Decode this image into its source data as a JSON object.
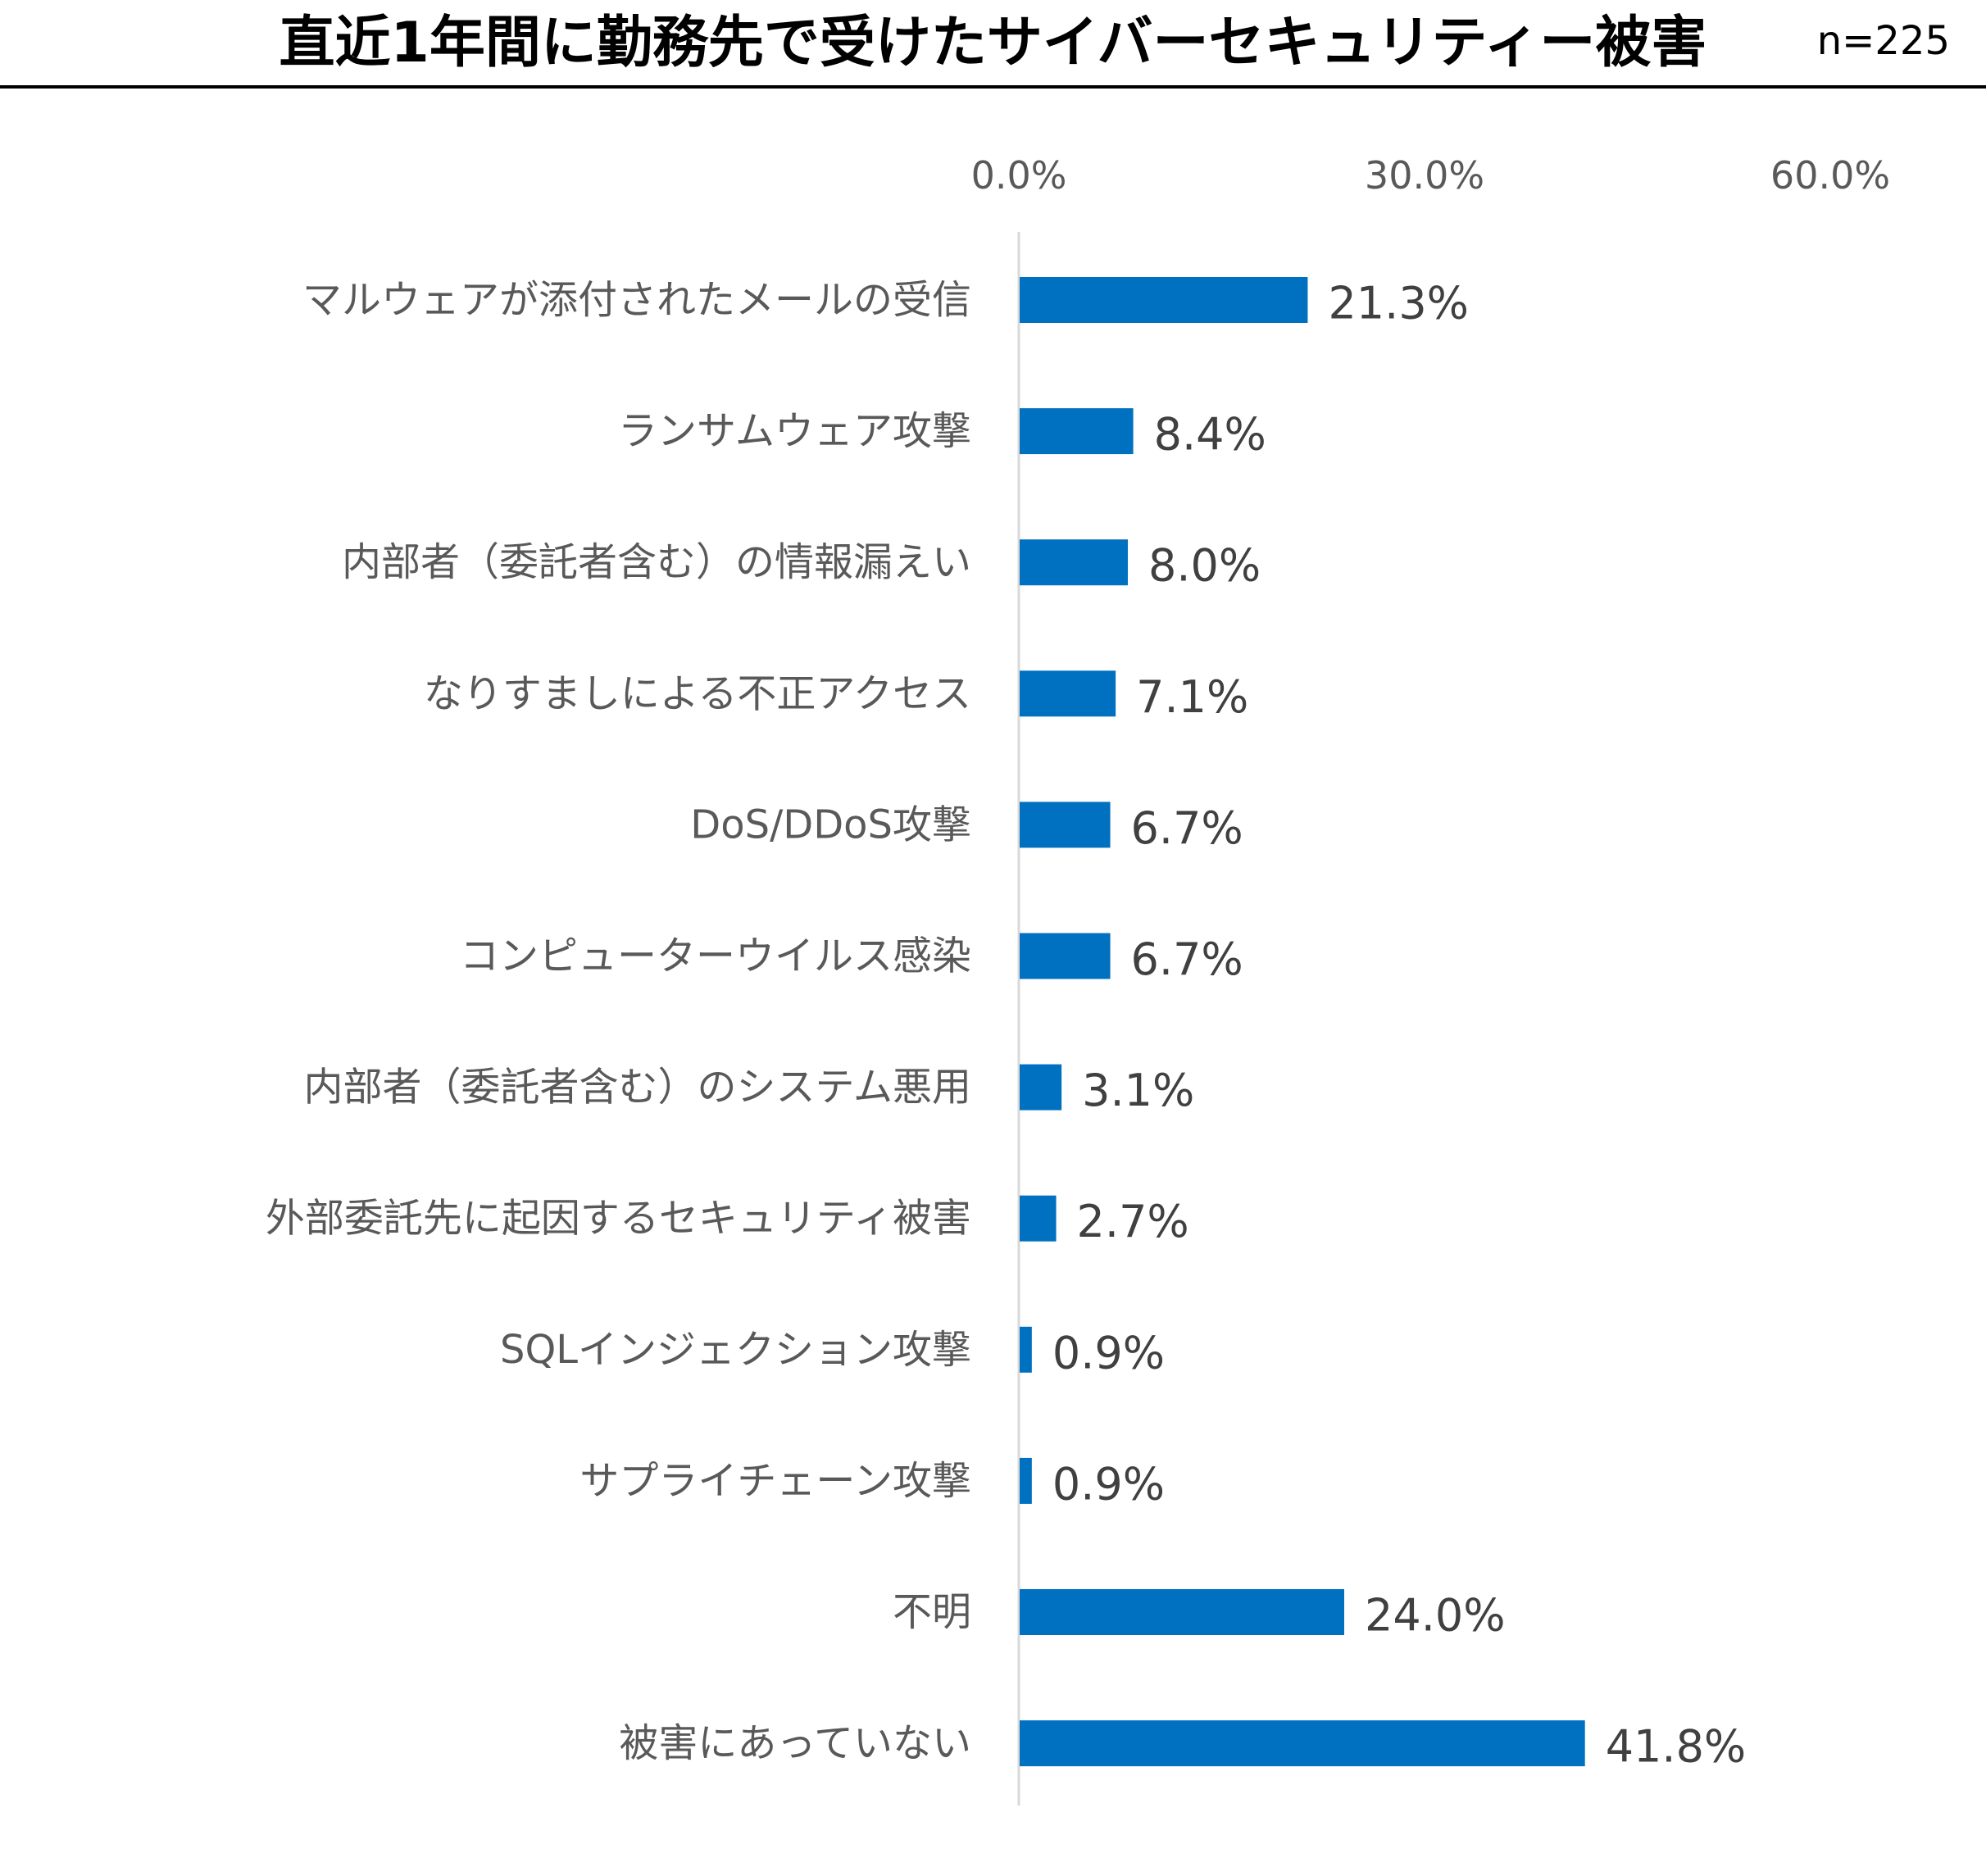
{
  "chart_data": {
    "type": "bar",
    "orientation": "horizontal",
    "title": "直近1年間に勤務先で受けたサイバーセキュリティー被害",
    "sample_size": "n=225",
    "x_ticks": [
      0,
      30,
      60
    ],
    "x_tick_labels": [
      "0.0%",
      "30.0%",
      "60.0%"
    ],
    "xlim": [
      0,
      60
    ],
    "categories": [
      "マルウェアが添付されたメールの受信",
      "ランサムウェア攻撃",
      "内部者（委託者含む）の情報漏えい",
      "なりすましによる不正アクセス",
      "DoS/DDoS攻撃",
      "コンピューターウイルス感染",
      "内部者（委託者含む）のシステム悪用",
      "外部委託先に起因するセキュリティ被害",
      "SQLインジェクション攻撃",
      "サプライチェーン攻撃",
      "不明",
      "被害にあっていない"
    ],
    "values": [
      21.3,
      8.4,
      8.0,
      7.1,
      6.7,
      6.7,
      3.1,
      2.7,
      0.9,
      0.9,
      24.0,
      41.8
    ],
    "value_labels": [
      "21.3%",
      "8.4%",
      "8.0%",
      "7.1%",
      "6.7%",
      "6.7%",
      "3.1%",
      "2.7%",
      "0.9%",
      "0.9%",
      "24.0%",
      "41.8%"
    ],
    "bar_color": "#0070C0",
    "axis_color": "#D9D9D9",
    "grid": false,
    "legend": "none"
  }
}
